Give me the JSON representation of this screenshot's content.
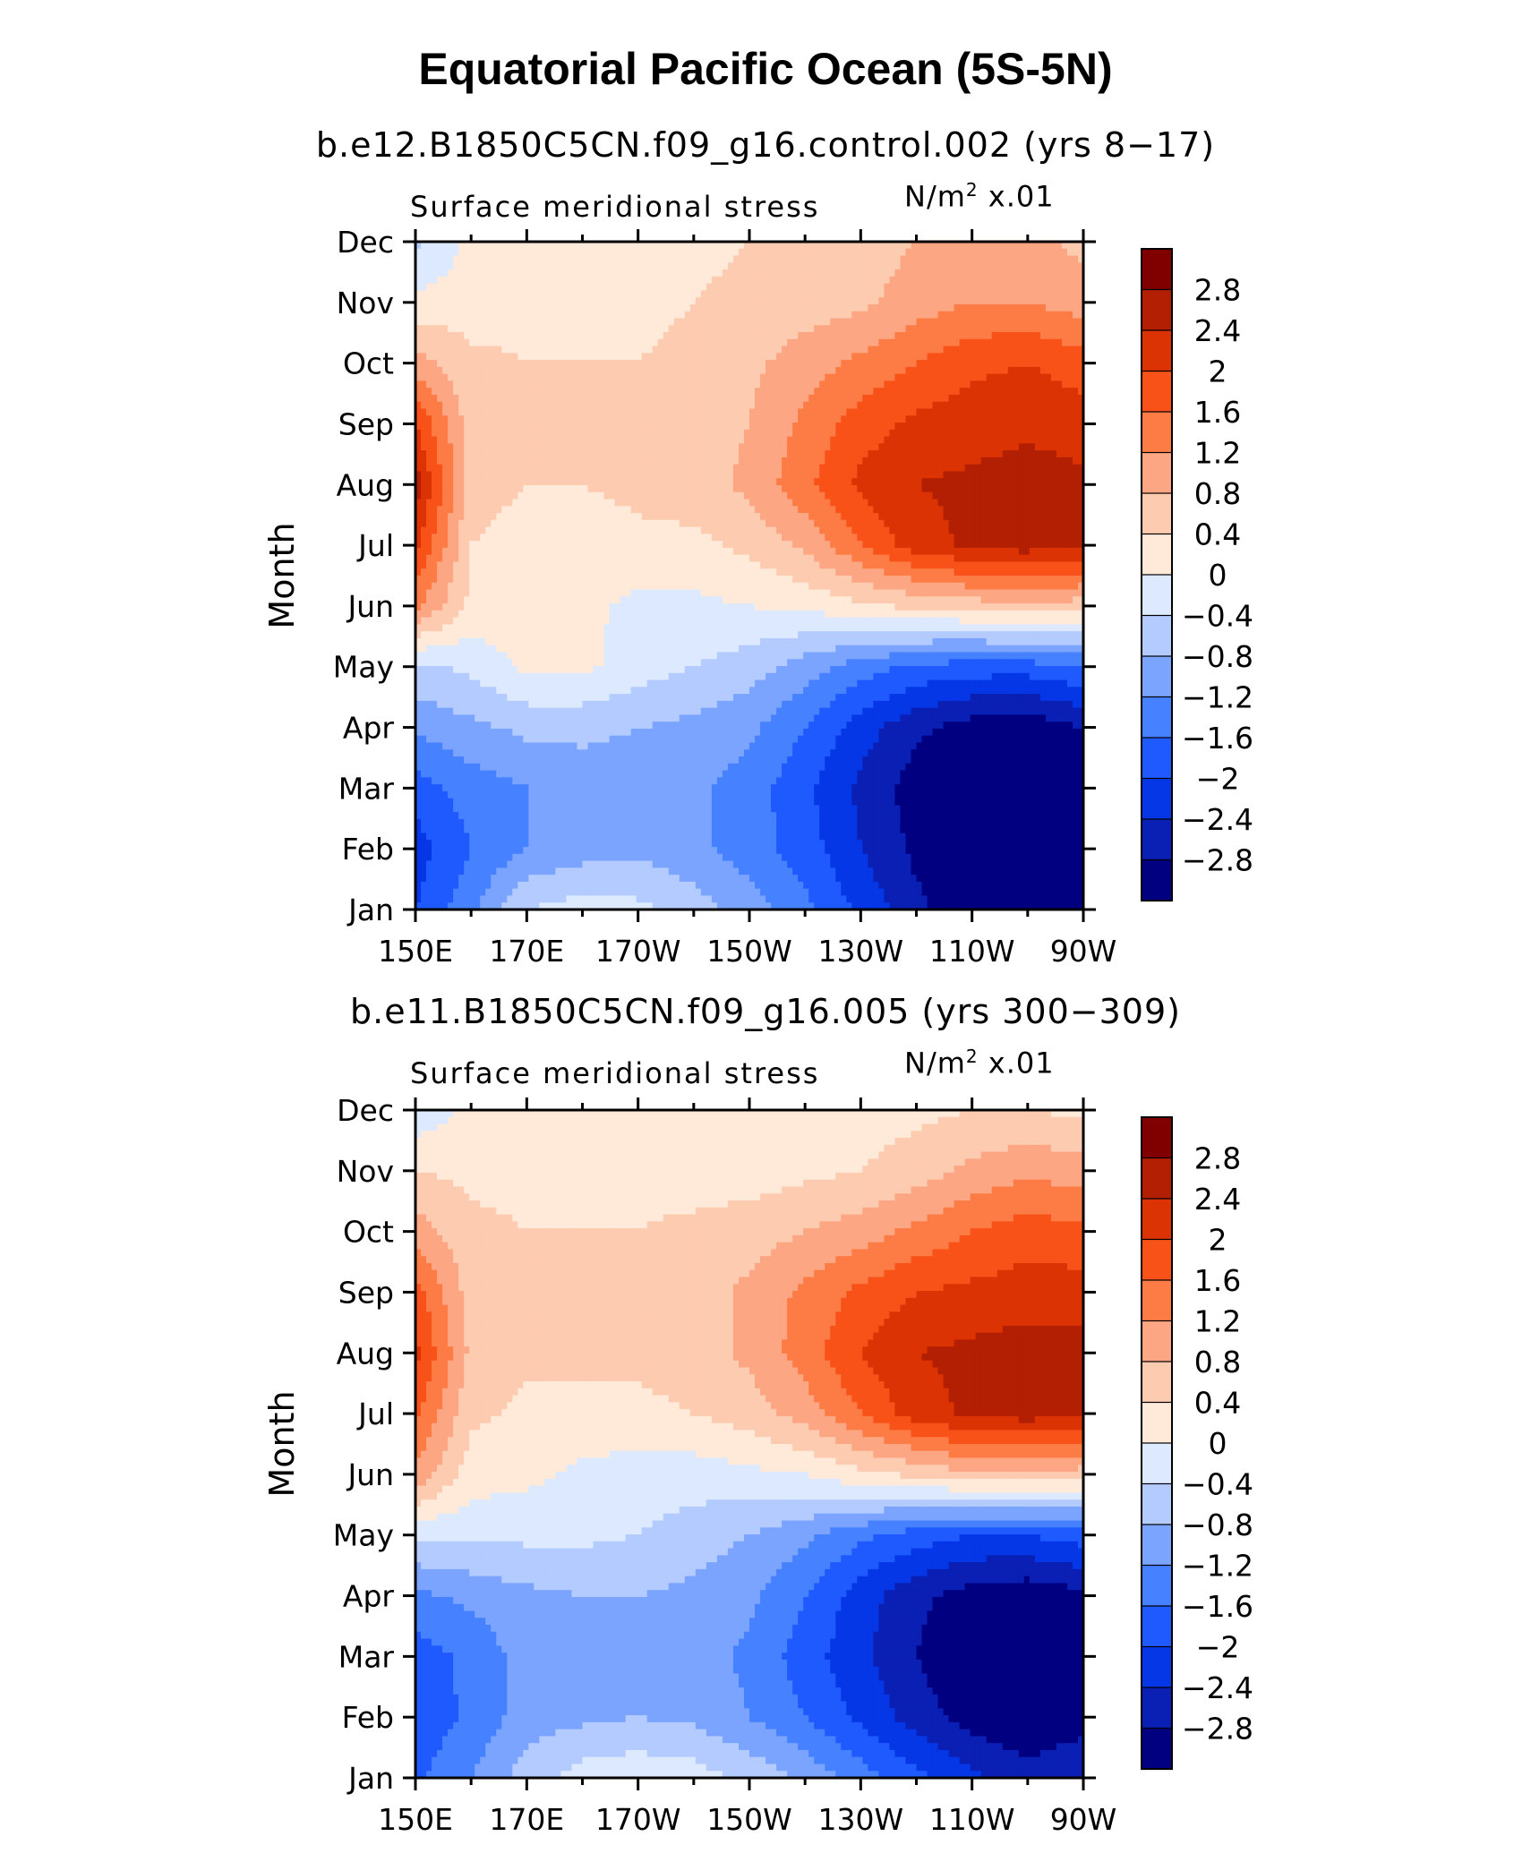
{
  "figure": {
    "title": "Equatorial Pacific Ocean (5S-5N)"
  },
  "chart_data": [
    {
      "type": "heatmap",
      "subtitle": "b.e12.B1850C5CN.f09_g16.control.002 (yrs 8−17)",
      "variable_label": "Surface meridional stress",
      "units_prefix": "N/m",
      "units_exp": "2",
      "units_suffix": " x.01",
      "ylabel": "Month",
      "x_ticklabels": [
        "150E",
        "170E",
        "170W",
        "150W",
        "130W",
        "110W",
        "90W"
      ],
      "y_ticklabels": [
        "Jan",
        "Feb",
        "Mar",
        "Apr",
        "May",
        "Jun",
        "Jul",
        "Aug",
        "Sep",
        "Oct",
        "Nov",
        "Dec"
      ],
      "x_lon_range_deg_east": [
        150,
        270
      ],
      "colorbar_labels": [
        "2.8",
        "2.4",
        "2",
        "1.6",
        "1.2",
        "0.8",
        "0.4",
        "0",
        "−0.4",
        "−0.8",
        "−1.2",
        "−1.6",
        "−2",
        "−2.4",
        "−2.8"
      ],
      "z_by_month_lon_150_to_270_step_10": [
        [
          -2.0,
          -1.3,
          -0.4,
          -0.2,
          -0.3,
          -0.6,
          -1.0,
          -1.5,
          -2.1,
          -2.7,
          -3.1,
          -3.3,
          -3.1
        ],
        [
          -2.2,
          -1.6,
          -1.2,
          -1.0,
          -0.9,
          -1.1,
          -1.4,
          -1.8,
          -2.4,
          -2.9,
          -3.2,
          -3.4,
          -3.2
        ],
        [
          -1.8,
          -1.4,
          -1.2,
          -1.0,
          -1.0,
          -1.1,
          -1.4,
          -1.9,
          -2.5,
          -3.0,
          -3.4,
          -3.5,
          -3.3
        ],
        [
          -1.1,
          -0.9,
          -0.7,
          -0.7,
          -0.8,
          -0.9,
          -1.1,
          -1.6,
          -2.2,
          -2.7,
          -3.0,
          -3.1,
          -2.8
        ],
        [
          -0.5,
          -0.3,
          0.1,
          0.1,
          -0.2,
          -0.4,
          -0.6,
          -1.0,
          -1.4,
          -1.7,
          -1.8,
          -1.8,
          -1.6
        ],
        [
          1.3,
          0.3,
          0.2,
          0.1,
          -0.1,
          -0.1,
          0.0,
          0.1,
          0.3,
          0.5,
          0.6,
          0.7,
          0.6
        ],
        [
          2.1,
          0.4,
          0.2,
          0.2,
          0.3,
          0.3,
          0.5,
          0.9,
          1.6,
          2.2,
          2.5,
          2.6,
          2.4
        ],
        [
          2.6,
          0.6,
          0.4,
          0.4,
          0.5,
          0.6,
          0.9,
          1.5,
          2.1,
          2.4,
          2.5,
          2.6,
          2.5
        ],
        [
          2.0,
          0.6,
          0.5,
          0.5,
          0.5,
          0.6,
          0.8,
          1.3,
          1.8,
          2.1,
          2.2,
          2.3,
          2.2
        ],
        [
          1.0,
          0.5,
          0.4,
          0.4,
          0.4,
          0.5,
          0.7,
          1.0,
          1.3,
          1.6,
          1.9,
          2.0,
          1.8
        ],
        [
          0.1,
          0.2,
          0.3,
          0.3,
          0.3,
          0.4,
          0.5,
          0.6,
          0.7,
          1.0,
          1.2,
          1.2,
          1.0
        ],
        [
          -0.5,
          0.1,
          0.2,
          0.2,
          0.2,
          0.3,
          0.4,
          0.4,
          0.6,
          0.8,
          0.9,
          0.9,
          0.7
        ]
      ]
    },
    {
      "type": "heatmap",
      "subtitle": "b.e11.B1850C5CN.f09_g16.005 (yrs 300−309)",
      "variable_label": "Surface meridional stress",
      "units_prefix": "N/m",
      "units_exp": "2",
      "units_suffix": " x.01",
      "ylabel": "Month",
      "x_ticklabels": [
        "150E",
        "170E",
        "170W",
        "150W",
        "130W",
        "110W",
        "90W"
      ],
      "y_ticklabels": [
        "Jan",
        "Feb",
        "Mar",
        "Apr",
        "May",
        "Jun",
        "Jul",
        "Aug",
        "Sep",
        "Oct",
        "Nov",
        "Dec"
      ],
      "x_lon_range_deg_east": [
        150,
        270
      ],
      "colorbar_labels": [
        "2.8",
        "2.4",
        "2",
        "1.6",
        "1.2",
        "0.8",
        "0.4",
        "0",
        "−0.4",
        "−0.8",
        "−1.2",
        "−1.6",
        "−2",
        "−2.4",
        "−2.8"
      ],
      "z_by_month_lon_150_to_270_step_10": [
        [
          -1.7,
          -1.2,
          -0.6,
          -0.2,
          -0.1,
          -0.2,
          -0.5,
          -0.9,
          -1.4,
          -1.9,
          -2.3,
          -2.6,
          -2.4
        ],
        [
          -1.9,
          -1.5,
          -1.0,
          -0.9,
          -0.8,
          -0.9,
          -1.2,
          -1.6,
          -2.1,
          -2.6,
          -3.0,
          -3.2,
          -3.0
        ],
        [
          -1.8,
          -1.5,
          -1.0,
          -0.9,
          -0.8,
          -1.0,
          -1.3,
          -1.8,
          -2.3,
          -2.8,
          -3.2,
          -3.3,
          -3.1
        ],
        [
          -1.3,
          -1.1,
          -0.9,
          -0.8,
          -0.8,
          -0.9,
          -1.1,
          -1.6,
          -2.2,
          -2.7,
          -3.0,
          -3.1,
          -2.9
        ],
        [
          -0.3,
          -0.3,
          -0.3,
          -0.3,
          -0.4,
          -0.6,
          -0.8,
          -1.1,
          -1.5,
          -1.8,
          -2.0,
          -2.0,
          -1.8
        ],
        [
          1.1,
          0.2,
          0.1,
          -0.1,
          -0.2,
          -0.2,
          -0.1,
          0.0,
          0.3,
          0.5,
          0.7,
          0.7,
          0.6
        ],
        [
          1.7,
          0.5,
          0.3,
          0.3,
          0.3,
          0.4,
          0.6,
          1.0,
          1.6,
          2.2,
          2.5,
          2.6,
          2.5
        ],
        [
          2.1,
          0.7,
          0.5,
          0.5,
          0.5,
          0.6,
          0.9,
          1.4,
          2.0,
          2.4,
          2.5,
          2.6,
          2.6
        ],
        [
          1.8,
          0.6,
          0.5,
          0.5,
          0.5,
          0.6,
          0.9,
          1.3,
          1.7,
          2.0,
          2.1,
          2.2,
          2.2
        ],
        [
          1.0,
          0.5,
          0.4,
          0.4,
          0.4,
          0.5,
          0.6,
          0.8,
          1.0,
          1.3,
          1.6,
          1.8,
          1.7
        ],
        [
          0.4,
          0.3,
          0.3,
          0.3,
          0.3,
          0.2,
          0.2,
          0.3,
          0.4,
          0.6,
          0.9,
          1.1,
          1.0
        ],
        [
          -0.3,
          0.1,
          0.1,
          0.1,
          0.1,
          0.1,
          0.1,
          0.1,
          0.2,
          0.3,
          0.4,
          0.4,
          0.3
        ]
      ]
    }
  ],
  "colors": {
    "bins_low_to_high": [
      "#000080",
      "#0a1fb4",
      "#0537e6",
      "#1e5aff",
      "#4682ff",
      "#7aa4ff",
      "#b3cbff",
      "#dce9ff",
      "#ffeada",
      "#fdcbb0",
      "#fda683",
      "#fd7c46",
      "#f95218",
      "#dc3304",
      "#b31f03",
      "#800000"
    ],
    "bins_edges": [
      -2.8,
      -2.4,
      -2.0,
      -1.6,
      -1.2,
      -0.8,
      -0.4,
      0.0,
      0.4,
      0.8,
      1.2,
      1.6,
      2.0,
      2.4,
      2.8
    ]
  }
}
